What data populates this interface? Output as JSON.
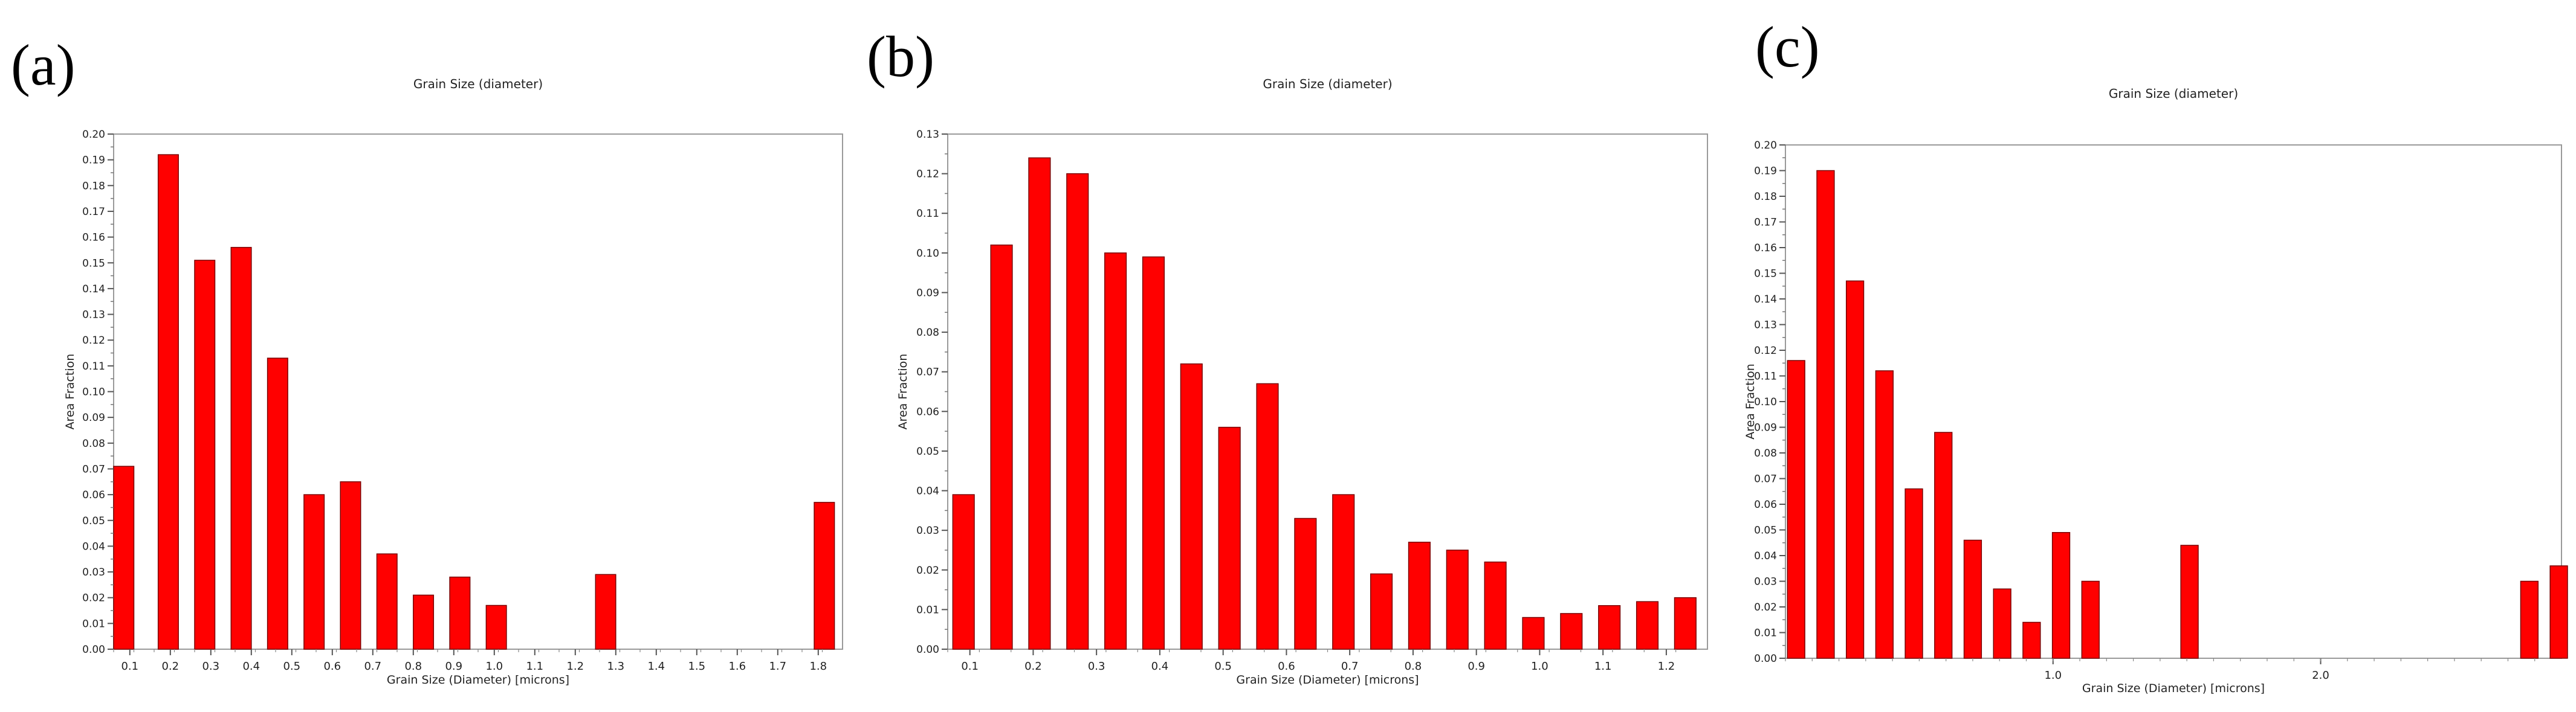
{
  "panels": [
    {
      "label": "(a)",
      "chart_data": {
        "type": "bar",
        "title": "Grain Size (diameter)",
        "xlabel": "Grain Size (Diameter) [microns]",
        "ylabel": "Area Fraction",
        "x_range": [
          0.06,
          1.86
        ],
        "ylim": [
          0,
          0.2
        ],
        "x_ticks": [
          0.1,
          0.2,
          0.3,
          0.4,
          0.5,
          0.6,
          0.7,
          0.8,
          0.9,
          1.0,
          1.1,
          1.2,
          1.3,
          1.4,
          1.5,
          1.6,
          1.7,
          1.8
        ],
        "x_tick_labels": [
          "0.1",
          "0.2",
          "0.3",
          "0.4",
          "0.5",
          "0.6",
          "0.7",
          "0.8",
          "0.9",
          "1.0",
          "1.1",
          "1.2",
          "1.3",
          "1.4",
          "1.5",
          "1.6",
          "1.7",
          "1.8"
        ],
        "y_ticks": [
          0.0,
          0.01,
          0.02,
          0.03,
          0.04,
          0.05,
          0.06,
          0.07,
          0.08,
          0.09,
          0.1,
          0.11,
          0.12,
          0.13,
          0.14,
          0.15,
          0.16,
          0.17,
          0.18,
          0.19,
          0.2
        ],
        "y_tick_labels": [
          "0.00",
          "0.01",
          "0.02",
          "0.03",
          "0.04",
          "0.05",
          "0.06",
          "0.07",
          "0.08",
          "0.09",
          "0.10",
          "0.11",
          "0.12",
          "0.13",
          "0.14",
          "0.15",
          "0.16",
          "0.17",
          "0.18",
          "0.19",
          "0.20"
        ],
        "bin_width": 0.05,
        "x": [
          0.085,
          0.195,
          0.285,
          0.375,
          0.465,
          0.555,
          0.645,
          0.735,
          0.825,
          0.915,
          1.005,
          1.275,
          1.815
        ],
        "values": [
          0.071,
          0.192,
          0.151,
          0.156,
          0.113,
          0.06,
          0.065,
          0.037,
          0.021,
          0.028,
          0.017,
          0.029,
          0.057
        ],
        "bar_color": "#ff0000",
        "grid": false
      }
    },
    {
      "label": "(b)",
      "chart_data": {
        "type": "bar",
        "title": "Grain Size (diameter)",
        "xlabel": "Grain Size (Diameter) [microns]",
        "ylabel": "Area Fraction",
        "x_range": [
          0.065,
          1.265
        ],
        "ylim": [
          0,
          0.13
        ],
        "x_ticks": [
          0.1,
          0.2,
          0.3,
          0.4,
          0.5,
          0.6,
          0.7,
          0.8,
          0.9,
          1.0,
          1.1,
          1.2
        ],
        "x_tick_labels": [
          "0.1",
          "0.2",
          "0.3",
          "0.4",
          "0.5",
          "0.6",
          "0.7",
          "0.8",
          "0.9",
          "1.0",
          "1.1",
          "1.2"
        ],
        "y_ticks": [
          0.0,
          0.01,
          0.02,
          0.03,
          0.04,
          0.05,
          0.06,
          0.07,
          0.08,
          0.09,
          0.1,
          0.11,
          0.12,
          0.13
        ],
        "y_tick_labels": [
          "0.00",
          "0.01",
          "0.02",
          "0.03",
          "0.04",
          "0.05",
          "0.06",
          "0.07",
          "0.08",
          "0.09",
          "0.10",
          "0.11",
          "0.12",
          "0.13"
        ],
        "bin_width": 0.034,
        "x": [
          0.09,
          0.15,
          0.21,
          0.27,
          0.33,
          0.39,
          0.45,
          0.51,
          0.57,
          0.63,
          0.69,
          0.75,
          0.81,
          0.87,
          0.93,
          0.99,
          1.05,
          1.11,
          1.17,
          1.23
        ],
        "values": [
          0.039,
          0.102,
          0.124,
          0.12,
          0.1,
          0.099,
          0.072,
          0.056,
          0.067,
          0.033,
          0.039,
          0.019,
          0.027,
          0.025,
          0.022,
          0.008,
          0.009,
          0.011,
          0.012,
          0.013
        ],
        "bar_color": "#ff0000",
        "grid": false
      }
    },
    {
      "label": "(c)",
      "chart_data": {
        "type": "bar",
        "title": "Grain Size (diameter)",
        "xlabel": "Grain Size (Diameter) [microns]",
        "ylabel": "Area Fraction",
        "x_range": [
          0.0,
          2.9
        ],
        "ylim": [
          0,
          0.2
        ],
        "x_ticks": [
          1.0,
          2.0
        ],
        "x_tick_labels": [
          "1.0",
          "2.0"
        ],
        "y_ticks": [
          0.0,
          0.01,
          0.02,
          0.03,
          0.04,
          0.05,
          0.06,
          0.07,
          0.08,
          0.09,
          0.1,
          0.11,
          0.12,
          0.13,
          0.14,
          0.15,
          0.16,
          0.17,
          0.18,
          0.19,
          0.2
        ],
        "y_tick_labels": [
          "0.00",
          "0.01",
          "0.02",
          "0.03",
          "0.04",
          "0.05",
          "0.06",
          "0.07",
          "0.08",
          "0.09",
          "0.10",
          "0.11",
          "0.12",
          "0.13",
          "0.14",
          "0.15",
          "0.16",
          "0.17",
          "0.18",
          "0.19",
          "0.20"
        ],
        "bin_width": 0.065,
        "x": [
          0.04,
          0.15,
          0.26,
          0.37,
          0.48,
          0.59,
          0.7,
          0.81,
          0.92,
          1.03,
          1.14,
          1.51,
          2.78,
          2.89
        ],
        "values": [
          0.116,
          0.19,
          0.147,
          0.112,
          0.066,
          0.088,
          0.046,
          0.027,
          0.014,
          0.049,
          0.03,
          0.044,
          0.03,
          0.036
        ],
        "bar_color": "#ff0000",
        "grid": false
      }
    }
  ]
}
